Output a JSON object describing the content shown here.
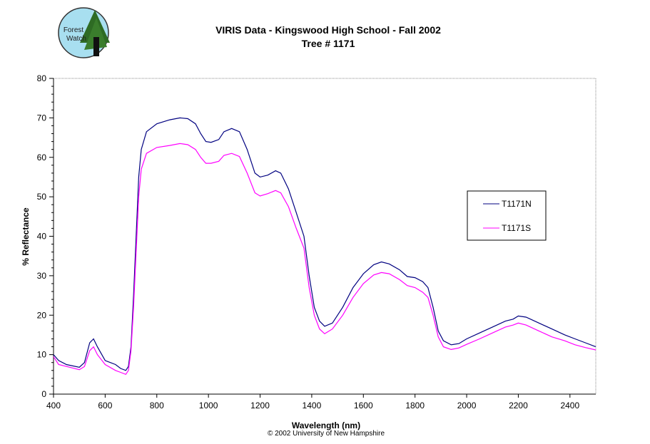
{
  "logo": {
    "text_line1": "Forest",
    "text_line2": "Watch"
  },
  "copyright": "© 2002 University of New Hampshire",
  "chart_data": {
    "type": "line",
    "title": "VIRIS Data - Kingswood High School - Fall 2002",
    "subtitle": "Tree # 1171",
    "xlabel": "Wavelength (nm)",
    "ylabel": "% Reflectance",
    "xlim": [
      400,
      2500
    ],
    "ylim": [
      0,
      80
    ],
    "xticks": [
      400,
      600,
      800,
      1000,
      1200,
      1400,
      1600,
      1800,
      2000,
      2200,
      2400
    ],
    "yticks": [
      0,
      10,
      20,
      30,
      40,
      50,
      60,
      70,
      80
    ],
    "grid": false,
    "legend_placement": "right",
    "x": [
      400,
      420,
      450,
      500,
      520,
      540,
      555,
      570,
      600,
      640,
      660,
      680,
      690,
      700,
      710,
      720,
      730,
      740,
      760,
      800,
      850,
      890,
      920,
      950,
      970,
      990,
      1010,
      1040,
      1060,
      1090,
      1120,
      1150,
      1180,
      1200,
      1230,
      1260,
      1280,
      1310,
      1340,
      1370,
      1390,
      1410,
      1430,
      1450,
      1480,
      1520,
      1560,
      1600,
      1640,
      1670,
      1700,
      1740,
      1770,
      1800,
      1830,
      1850,
      1870,
      1890,
      1910,
      1940,
      1970,
      2000,
      2050,
      2100,
      2150,
      2180,
      2200,
      2230,
      2280,
      2330,
      2380,
      2420,
      2460,
      2500
    ],
    "series": [
      {
        "name": "T1171N",
        "color": "#000080",
        "values": [
          10,
          8.5,
          7.5,
          6.8,
          8,
          13,
          14,
          12,
          8.5,
          7.5,
          6.5,
          6,
          7,
          12,
          25,
          40,
          55,
          62,
          66.5,
          68.5,
          69.5,
          70,
          69.8,
          68.5,
          66,
          64,
          63.8,
          64.5,
          66.5,
          67.3,
          66.5,
          62,
          56,
          55,
          55.5,
          56.6,
          56,
          52,
          46,
          40,
          30,
          22,
          18.5,
          17.2,
          18,
          22,
          27,
          30.5,
          32.8,
          33.5,
          33,
          31.5,
          29.8,
          29.5,
          28.5,
          27,
          22,
          16,
          13.5,
          12.5,
          12.8,
          14,
          15.5,
          17,
          18.5,
          19,
          19.8,
          19.5,
          18,
          16.5,
          15,
          14,
          13,
          12
        ]
      },
      {
        "name": "T1171S",
        "color": "#ff00ff",
        "values": [
          9.5,
          7.5,
          7,
          6.2,
          7,
          11,
          12,
          10,
          7.5,
          6,
          5.5,
          5,
          6,
          11,
          22,
          36,
          50,
          57,
          61,
          62.5,
          63,
          63.5,
          63.2,
          62,
          60,
          58.5,
          58.5,
          59,
          60.5,
          61,
          60.2,
          56,
          51,
          50.2,
          50.8,
          51.6,
          51,
          47.5,
          42,
          37,
          27,
          20,
          16.5,
          15.3,
          16.5,
          20,
          24.5,
          28,
          30.2,
          30.8,
          30.5,
          29,
          27.5,
          27,
          25.8,
          24.5,
          20,
          14.5,
          12,
          11.3,
          11.7,
          12.6,
          14,
          15.5,
          17,
          17.5,
          18,
          17.5,
          16,
          14.5,
          13.5,
          12.5,
          11.8,
          11.2
        ]
      }
    ]
  }
}
